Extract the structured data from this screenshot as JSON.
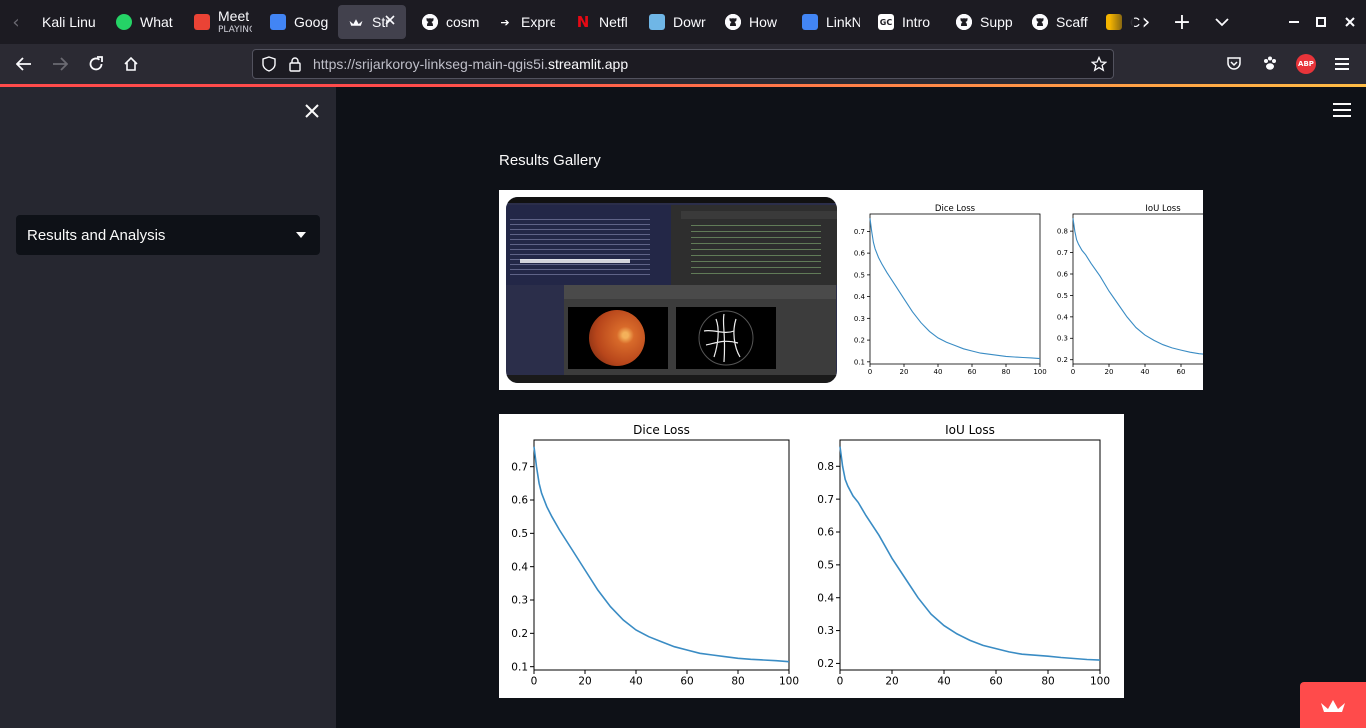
{
  "browser": {
    "tabs": [
      {
        "label": "Kali Linu",
        "icon": "kali-icon",
        "color": "#367bf0"
      },
      {
        "label": "What",
        "icon": "whatsapp-icon",
        "color": "#25d366"
      },
      {
        "label": "Meet",
        "sublabel": "PLAYING",
        "icon": "meet-icon",
        "color": "#ea4335"
      },
      {
        "label": "Goog",
        "icon": "google-icon",
        "color": "#4285f4"
      },
      {
        "label": "Str",
        "icon": "streamlit-icon",
        "color": "#ff4b4b",
        "active": true
      },
      {
        "label": "cosm",
        "icon": "github-icon",
        "color": "#ffffff"
      },
      {
        "label": "Expre",
        "icon": "express-icon",
        "color": "#ffffff"
      },
      {
        "label": "Netfl",
        "icon": "netflix-icon",
        "color": "#e50914"
      },
      {
        "label": "Dowr",
        "icon": "download-icon",
        "color": "#6fb6e6"
      },
      {
        "label": "How",
        "icon": "github-icon",
        "color": "#ffffff"
      },
      {
        "label": "LinkN",
        "icon": "docs-icon",
        "color": "#4285f4"
      },
      {
        "label": "Intro",
        "icon": "gc-icon",
        "color": "#ffffff"
      },
      {
        "label": "Supp",
        "icon": "github-icon",
        "color": "#ffffff"
      },
      {
        "label": "Scaff",
        "icon": "github-icon",
        "color": "#ffffff"
      },
      {
        "label": "C",
        "icon": "slides-icon",
        "color": "#f4b400"
      }
    ],
    "url_prefix": "https://srijarkoroy-linkseg-main-qgis5i.",
    "url_domain": "streamlit.app",
    "extension_abp": "ABP"
  },
  "sidebar": {
    "selected_page": "Results and Analysis"
  },
  "main": {
    "gallery_title": "Results Gallery"
  },
  "charts": {
    "dice_title": "Dice Loss",
    "iou_title": "IoU Loss",
    "x_ticks": [
      "0",
      "20",
      "40",
      "60",
      "80",
      "100"
    ],
    "dice_y_ticks": [
      "0.1",
      "0.2",
      "0.3",
      "0.4",
      "0.5",
      "0.6",
      "0.7"
    ],
    "iou_y_ticks": [
      "0.2",
      "0.3",
      "0.4",
      "0.5",
      "0.6",
      "0.7",
      "0.8"
    ]
  },
  "chart_data": [
    {
      "type": "line",
      "title": "Dice Loss",
      "xlim": [
        0,
        100
      ],
      "ylim": [
        0.09,
        0.78
      ],
      "x": [
        0,
        1,
        2,
        3,
        5,
        7,
        10,
        15,
        20,
        25,
        30,
        35,
        40,
        45,
        50,
        55,
        60,
        65,
        70,
        75,
        80,
        85,
        90,
        95,
        100
      ],
      "y": [
        0.76,
        0.7,
        0.65,
        0.62,
        0.58,
        0.55,
        0.51,
        0.45,
        0.39,
        0.33,
        0.28,
        0.24,
        0.21,
        0.19,
        0.175,
        0.16,
        0.15,
        0.14,
        0.135,
        0.13,
        0.125,
        0.122,
        0.12,
        0.118,
        0.115
      ]
    },
    {
      "type": "line",
      "title": "IoU Loss",
      "xlim": [
        0,
        100
      ],
      "ylim": [
        0.18,
        0.88
      ],
      "x": [
        0,
        1,
        2,
        3,
        5,
        7,
        10,
        15,
        20,
        25,
        30,
        35,
        40,
        45,
        50,
        55,
        60,
        65,
        70,
        75,
        80,
        85,
        90,
        95,
        100
      ],
      "y": [
        0.86,
        0.8,
        0.76,
        0.74,
        0.71,
        0.69,
        0.65,
        0.59,
        0.52,
        0.46,
        0.4,
        0.35,
        0.315,
        0.29,
        0.27,
        0.255,
        0.245,
        0.235,
        0.228,
        0.225,
        0.222,
        0.218,
        0.215,
        0.212,
        0.21
      ]
    }
  ]
}
